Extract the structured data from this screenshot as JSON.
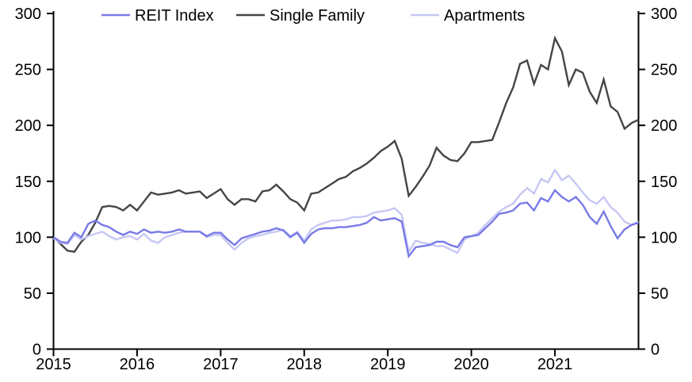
{
  "chart_data": {
    "type": "line",
    "title": "",
    "xlabel": "",
    "ylabel": "",
    "x_frequency": "monthly",
    "x_start": "2015-01",
    "x_end": "2022-01",
    "x_tick_labels": [
      "2015",
      "2016",
      "2017",
      "2018",
      "2019",
      "2020",
      "2021"
    ],
    "ylim": [
      0,
      300
    ],
    "y_ticks": [
      0,
      50,
      100,
      150,
      200,
      250,
      300
    ],
    "y_axis_sides": [
      "left",
      "right"
    ],
    "grid": false,
    "legend_position": "top",
    "series": [
      {
        "name": "REIT Index",
        "color": "#787AE6",
        "values": [
          100,
          96,
          95,
          104,
          100,
          112,
          115,
          111,
          109,
          105,
          102,
          105,
          103,
          107,
          104,
          105,
          104,
          105,
          107,
          105,
          105,
          105,
          101,
          104,
          104,
          98,
          93,
          99,
          101,
          103,
          105,
          106,
          108,
          106,
          100,
          104,
          95,
          103,
          107,
          108,
          108,
          109,
          109,
          110,
          111,
          113,
          118,
          115,
          116,
          117,
          114,
          83,
          91,
          92,
          93,
          96,
          96,
          93,
          91,
          100,
          101,
          102,
          108,
          114,
          121,
          122,
          124,
          130,
          131,
          124,
          135,
          132,
          142,
          136,
          132,
          136,
          129,
          118,
          112,
          123,
          110,
          99,
          107,
          111,
          113
        ]
      },
      {
        "name": "Single Family",
        "color": "#454545",
        "values": [
          100,
          94,
          88,
          87,
          96,
          102,
          113,
          127,
          128,
          127,
          124,
          129,
          124,
          132,
          140,
          138,
          139,
          140,
          142,
          139,
          140,
          141,
          135,
          139,
          143,
          134,
          129,
          134,
          134,
          132,
          141,
          142,
          147,
          141,
          134,
          131,
          124,
          139,
          140,
          144,
          148,
          152,
          154,
          159,
          162,
          166,
          171,
          177,
          181,
          186,
          170,
          137,
          145,
          154,
          164,
          180,
          173,
          169,
          168,
          175,
          185,
          185,
          186,
          187,
          203,
          220,
          234,
          255,
          258,
          237,
          254,
          250,
          278,
          266,
          236,
          250,
          247,
          230,
          220,
          241,
          217,
          212,
          197,
          202,
          205
        ]
      },
      {
        "name": "Apartments",
        "color": "#C6C7F4",
        "values": [
          99,
          95,
          94,
          102,
          98,
          101,
          103,
          105,
          101,
          98,
          100,
          101,
          98,
          103,
          97,
          95,
          100,
          102,
          104,
          105,
          105,
          105,
          100,
          102,
          102,
          95,
          89,
          95,
          99,
          101,
          102,
          104,
          105,
          107,
          101,
          105,
          97,
          107,
          111,
          113,
          115,
          115,
          116,
          118,
          118,
          119,
          122,
          123,
          124,
          126,
          120,
          87,
          97,
          95,
          94,
          92,
          92,
          89,
          86,
          98,
          101,
          104,
          111,
          117,
          123,
          127,
          130,
          138,
          144,
          139,
          152,
          149,
          160,
          151,
          155,
          148,
          140,
          133,
          130,
          136,
          127,
          122,
          114,
          111,
          114
        ]
      }
    ]
  },
  "colors": {
    "background": "#FFFFFF",
    "axis": "#000000",
    "text": "#000000"
  }
}
